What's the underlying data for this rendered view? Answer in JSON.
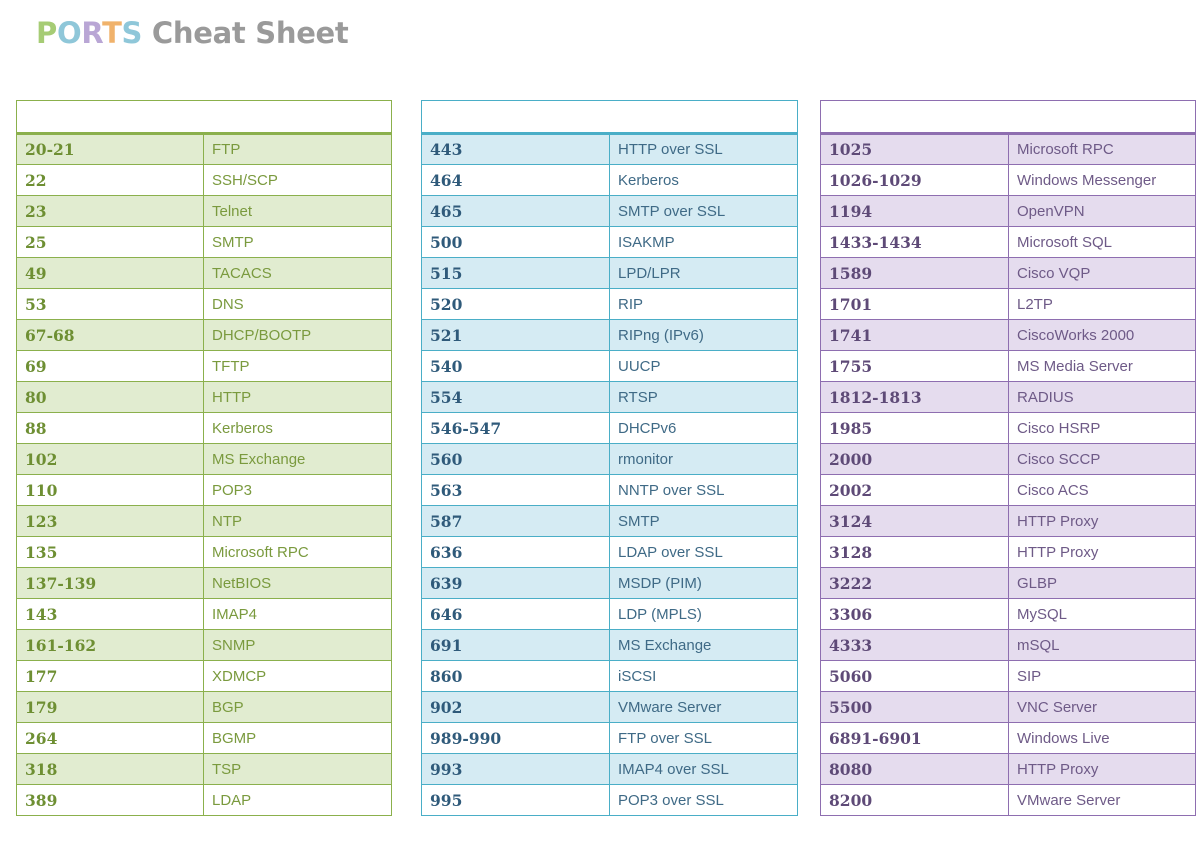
{
  "title": {
    "letters": [
      {
        "char": "P",
        "color": "#a6cc75"
      },
      {
        "char": "O",
        "color": "#8fc7d9"
      },
      {
        "char": "R",
        "color": "#b9a6d5"
      },
      {
        "char": "T",
        "color": "#f0b26b"
      },
      {
        "char": "S",
        "color": "#8fc7d9"
      }
    ],
    "rest": " Cheat Sheet"
  },
  "tables": [
    {
      "theme": "green",
      "rows": [
        [
          "20-21",
          "FTP"
        ],
        [
          "22",
          "SSH/SCP"
        ],
        [
          "23",
          "Telnet"
        ],
        [
          "25",
          "SMTP"
        ],
        [
          "49",
          "TACACS"
        ],
        [
          "53",
          "DNS"
        ],
        [
          "67-68",
          "DHCP/BOOTP"
        ],
        [
          "69",
          "TFTP"
        ],
        [
          "80",
          "HTTP"
        ],
        [
          "88",
          "Kerberos"
        ],
        [
          "102",
          "MS Exchange"
        ],
        [
          "110",
          "POP3"
        ],
        [
          "123",
          "NTP"
        ],
        [
          "135",
          "Microsoft RPC"
        ],
        [
          "137-139",
          "NetBIOS"
        ],
        [
          "143",
          "IMAP4"
        ],
        [
          "161-162",
          "SNMP"
        ],
        [
          "177",
          "XDMCP"
        ],
        [
          "179",
          "BGP"
        ],
        [
          "264",
          "BGMP"
        ],
        [
          "318",
          "TSP"
        ],
        [
          "389",
          "LDAP"
        ]
      ]
    },
    {
      "theme": "blue",
      "rows": [
        [
          "443",
          "HTTP over SSL"
        ],
        [
          "464",
          "Kerberos"
        ],
        [
          "465",
          "SMTP over SSL"
        ],
        [
          "500",
          "ISAKMP"
        ],
        [
          "515",
          "LPD/LPR"
        ],
        [
          "520",
          "RIP"
        ],
        [
          "521",
          "RIPng (IPv6)"
        ],
        [
          "540",
          "UUCP"
        ],
        [
          "554",
          "RTSP"
        ],
        [
          "546-547",
          "DHCPv6"
        ],
        [
          "560",
          "rmonitor"
        ],
        [
          "563",
          "NNTP over SSL"
        ],
        [
          "587",
          "SMTP"
        ],
        [
          "636",
          "LDAP over SSL"
        ],
        [
          "639",
          "MSDP (PIM)"
        ],
        [
          "646",
          "LDP (MPLS)"
        ],
        [
          "691",
          "MS Exchange"
        ],
        [
          "860",
          "iSCSI"
        ],
        [
          "902",
          "VMware Server"
        ],
        [
          "989-990",
          "FTP over SSL"
        ],
        [
          "993",
          "IMAP4 over SSL"
        ],
        [
          "995",
          "POP3 over SSL"
        ]
      ]
    },
    {
      "theme": "purple",
      "rows": [
        [
          "1025",
          "Microsoft RPC"
        ],
        [
          "1026-1029",
          "Windows Messenger"
        ],
        [
          "1194",
          "OpenVPN"
        ],
        [
          "1433-1434",
          "Microsoft SQL"
        ],
        [
          "1589",
          "Cisco VQP"
        ],
        [
          "1701",
          "L2TP"
        ],
        [
          "1741",
          "CiscoWorks 2000"
        ],
        [
          "1755",
          "MS Media Server"
        ],
        [
          "1812-1813",
          "RADIUS"
        ],
        [
          "1985",
          "Cisco HSRP"
        ],
        [
          "2000",
          "Cisco SCCP"
        ],
        [
          "2002",
          "Cisco ACS"
        ],
        [
          "3124",
          "HTTP Proxy"
        ],
        [
          "3128",
          "HTTP Proxy"
        ],
        [
          "3222",
          "GLBP"
        ],
        [
          "3306",
          "MySQL"
        ],
        [
          "4333",
          "mSQL"
        ],
        [
          "5060",
          "SIP"
        ],
        [
          "5500",
          "VNC Server"
        ],
        [
          "6891-6901",
          "Windows Live"
        ],
        [
          "8080",
          "HTTP Proxy"
        ],
        [
          "8200",
          "VMware Server"
        ]
      ]
    }
  ]
}
